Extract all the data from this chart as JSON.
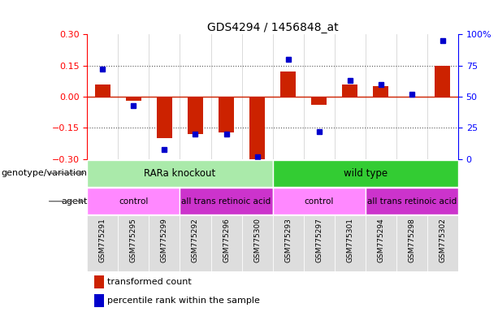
{
  "title": "GDS4294 / 1456848_at",
  "samples": [
    "GSM775291",
    "GSM775295",
    "GSM775299",
    "GSM775292",
    "GSM775296",
    "GSM775300",
    "GSM775293",
    "GSM775297",
    "GSM775301",
    "GSM775294",
    "GSM775298",
    "GSM775302"
  ],
  "red_bars": [
    0.06,
    -0.02,
    -0.2,
    -0.18,
    -0.17,
    -0.3,
    0.12,
    -0.04,
    0.06,
    0.05,
    0.0,
    0.15
  ],
  "blue_dots_pct": [
    72,
    43,
    8,
    20,
    20,
    2,
    80,
    22,
    63,
    60,
    52,
    95
  ],
  "ylim_left": [
    -0.3,
    0.3
  ],
  "ylim_right": [
    0,
    100
  ],
  "yticks_left": [
    -0.3,
    -0.15,
    0,
    0.15,
    0.3
  ],
  "yticks_right": [
    0,
    25,
    50,
    75,
    100
  ],
  "ytick_labels_right": [
    "0",
    "25",
    "50",
    "75",
    "100%"
  ],
  "hlines_dotted": [
    -0.15,
    0.15
  ],
  "hline_zero": 0,
  "genotype_groups": [
    {
      "label": "RARa knockout",
      "start": 0,
      "end": 6,
      "color": "#aaeaaa"
    },
    {
      "label": "wild type",
      "start": 6,
      "end": 12,
      "color": "#33cc33"
    }
  ],
  "agent_groups": [
    {
      "label": "control",
      "start": 0,
      "end": 3,
      "color": "#ff88ff"
    },
    {
      "label": "all trans retinoic acid",
      "start": 3,
      "end": 6,
      "color": "#cc33cc"
    },
    {
      "label": "control",
      "start": 6,
      "end": 9,
      "color": "#ff88ff"
    },
    {
      "label": "all trans retinoic acid",
      "start": 9,
      "end": 12,
      "color": "#cc33cc"
    }
  ],
  "legend_red": "transformed count",
  "legend_blue": "percentile rank within the sample",
  "bar_color": "#cc2200",
  "dot_color": "#0000cc",
  "zero_line_color": "#cc2200",
  "dotted_line_color": "#555555",
  "bg_color": "#ffffff",
  "tick_bg_color": "#dddddd",
  "label_genotype": "genotype/variation",
  "label_agent": "agent"
}
